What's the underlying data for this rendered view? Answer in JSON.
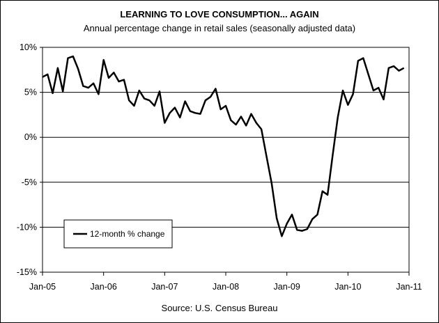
{
  "chart_data": {
    "type": "line",
    "title": "LEARNING TO LOVE CONSUMPTION... AGAIN",
    "subtitle": "Annual percentage change in retail sales (seasonally adjusted data)",
    "source": "Source: U.S. Census Bureau",
    "xlabel": "",
    "ylabel": "",
    "ylim": [
      -15,
      10
    ],
    "xlim": [
      "2005-01",
      "2011-01"
    ],
    "y_ticks": [
      "-15%",
      "-10%",
      "-5%",
      "0%",
      "5%",
      "10%"
    ],
    "y_tick_values": [
      -15,
      -10,
      -5,
      0,
      5,
      10
    ],
    "x_ticks": [
      "Jan-05",
      "Jan-06",
      "Jan-07",
      "Jan-08",
      "Jan-09",
      "Jan-10",
      "Jan-11"
    ],
    "x_tick_values": [
      "2005-01",
      "2006-01",
      "2007-01",
      "2008-01",
      "2009-01",
      "2010-01",
      "2011-01"
    ],
    "grid": "horizontal",
    "legend_position": "bottom-left",
    "line_color": "#000000",
    "series": [
      {
        "name": "12-month % change",
        "x": [
          "2005-01",
          "2005-02",
          "2005-03",
          "2005-04",
          "2005-05",
          "2005-06",
          "2005-07",
          "2005-08",
          "2005-09",
          "2005-10",
          "2005-11",
          "2005-12",
          "2006-01",
          "2006-02",
          "2006-03",
          "2006-04",
          "2006-05",
          "2006-06",
          "2006-07",
          "2006-08",
          "2006-09",
          "2006-10",
          "2006-11",
          "2006-12",
          "2007-01",
          "2007-02",
          "2007-03",
          "2007-04",
          "2007-05",
          "2007-06",
          "2007-07",
          "2007-08",
          "2007-09",
          "2007-10",
          "2007-11",
          "2007-12",
          "2008-01",
          "2008-02",
          "2008-03",
          "2008-04",
          "2008-05",
          "2008-06",
          "2008-07",
          "2008-08",
          "2008-09",
          "2008-10",
          "2008-11",
          "2008-12",
          "2009-01",
          "2009-02",
          "2009-03",
          "2009-04",
          "2009-05",
          "2009-06",
          "2009-07",
          "2009-08",
          "2009-09",
          "2009-10",
          "2009-11",
          "2009-12",
          "2010-01",
          "2010-02",
          "2010-03",
          "2010-04",
          "2010-05",
          "2010-06",
          "2010-07",
          "2010-08",
          "2010-09",
          "2010-10",
          "2010-11",
          "2010-12"
        ],
        "values": [
          6.7,
          7.0,
          4.9,
          7.7,
          5.1,
          8.8,
          9.0,
          7.6,
          5.7,
          5.5,
          6.0,
          4.8,
          8.6,
          6.6,
          7.2,
          6.2,
          6.4,
          4.1,
          3.5,
          5.2,
          4.3,
          4.1,
          3.5,
          5.1,
          1.6,
          2.7,
          3.3,
          2.2,
          4.0,
          2.9,
          2.7,
          2.6,
          4.1,
          4.5,
          5.4,
          3.1,
          3.5,
          1.9,
          1.4,
          2.3,
          1.3,
          2.6,
          1.6,
          0.9,
          -2.1,
          -5.1,
          -9.0,
          -11.0,
          -9.6,
          -8.6,
          -10.3,
          -10.4,
          -10.2,
          -9.1,
          -8.6,
          -6.0,
          -6.4,
          -2.0,
          2.2,
          5.2,
          3.6,
          4.8,
          8.5,
          8.8,
          7.0,
          5.2,
          5.5,
          4.2,
          7.7,
          7.9,
          7.4,
          7.7
        ]
      }
    ]
  }
}
